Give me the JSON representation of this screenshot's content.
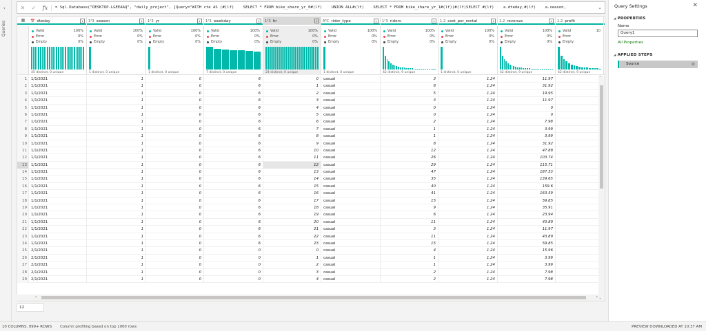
{
  "rail": {
    "label": "Queries",
    "chevron": "chevron-right-icon"
  },
  "formula": {
    "cancel_icon": "close-icon",
    "commit_icon": "check-icon",
    "fx": "fx",
    "text": "= Sql.Database(\"DESKTOP-LGEEAAQ\", \"daily_project\", [Query=\"WITH cte AS (#(lf)    SELECT * FROM bike_share_yr_0#(lf)    UNION ALL#(lf)    SELECT * FROM bike_share_yr_1#(lf))#(lf)SELECT #(lf)    a.dteday,#(lf)    a.season,"
  },
  "columns": [
    {
      "type": "📅",
      "name": "dteday"
    },
    {
      "type": "1²3",
      "name": "season"
    },
    {
      "type": "1²3",
      "name": "yr"
    },
    {
      "type": "1²3",
      "name": "weekday"
    },
    {
      "type": "1²3",
      "name": "hr"
    },
    {
      "type": "AᴮC",
      "name": "rider_type"
    },
    {
      "type": "1²3",
      "name": "riders"
    },
    {
      "type": "1.2",
      "name": "cost_per_rental"
    },
    {
      "type": "1.2",
      "name": "revenue"
    },
    {
      "type": "1.2",
      "name": "profit"
    }
  ],
  "profile_labels": {
    "valid": "Valid",
    "error": "Error",
    "empty": "Empty"
  },
  "profiles": [
    {
      "valid": "100%",
      "error": "0%",
      "empty": "0%",
      "distinct": "45 distinct, 0 unique"
    },
    {
      "valid": "100%",
      "error": "0%",
      "empty": "0%",
      "distinct": "1 distinct, 0 unique"
    },
    {
      "valid": "100%",
      "error": "0%",
      "empty": "0%",
      "distinct": "1 distinct, 0 unique"
    },
    {
      "valid": "100%",
      "error": "0%",
      "empty": "0%",
      "distinct": "7 distinct, 0 unique"
    },
    {
      "valid": "100%",
      "error": "0%",
      "empty": "0%",
      "distinct": "24 distinct, 0 unique"
    },
    {
      "valid": "100%",
      "error": "0%",
      "empty": "0%",
      "distinct": "1 distinct, 0 unique"
    },
    {
      "valid": "100%",
      "error": "0%",
      "empty": "0%",
      "distinct": "42 distinct, 9 unique"
    },
    {
      "valid": "100%",
      "error": "0%",
      "empty": "0%",
      "distinct": "1 distinct, 0 unique"
    },
    {
      "valid": "100%",
      "error": "0%",
      "empty": "0%",
      "distinct": "42 distinct, 9 unique"
    },
    {
      "valid": "10",
      "error": "",
      "empty": "",
      "distinct": "42 distinct, 9 unique"
    }
  ],
  "rows": [
    [
      "1",
      "1/1/2021",
      "1",
      "0",
      "6",
      "0",
      "casual",
      "3",
      "1.24",
      "11.97"
    ],
    [
      "2",
      "1/1/2021",
      "1",
      "0",
      "6",
      "1",
      "casual",
      "8",
      "1.24",
      "31.92"
    ],
    [
      "3",
      "1/1/2021",
      "1",
      "0",
      "6",
      "2",
      "casual",
      "5",
      "1.24",
      "19.95"
    ],
    [
      "4",
      "1/1/2021",
      "1",
      "0",
      "6",
      "3",
      "casual",
      "3",
      "1.24",
      "11.97"
    ],
    [
      "5",
      "1/1/2021",
      "1",
      "0",
      "6",
      "4",
      "casual",
      "0",
      "1.24",
      "0"
    ],
    [
      "6",
      "1/1/2021",
      "1",
      "0",
      "6",
      "5",
      "casual",
      "0",
      "1.24",
      "0"
    ],
    [
      "7",
      "1/1/2021",
      "1",
      "0",
      "6",
      "6",
      "casual",
      "2",
      "1.24",
      "7.98"
    ],
    [
      "8",
      "1/1/2021",
      "1",
      "0",
      "6",
      "7",
      "casual",
      "1",
      "1.24",
      "3.99"
    ],
    [
      "9",
      "1/1/2021",
      "1",
      "0",
      "6",
      "8",
      "casual",
      "1",
      "1.24",
      "3.99"
    ],
    [
      "10",
      "1/1/2021",
      "1",
      "0",
      "6",
      "9",
      "casual",
      "8",
      "1.24",
      "31.92"
    ],
    [
      "11",
      "1/1/2021",
      "1",
      "0",
      "6",
      "10",
      "casual",
      "12",
      "1.24",
      "47.88"
    ],
    [
      "12",
      "1/1/2021",
      "1",
      "0",
      "6",
      "11",
      "casual",
      "26",
      "1.24",
      "103.74"
    ],
    [
      "13",
      "1/1/2021",
      "1",
      "0",
      "6",
      "12",
      "casual",
      "29",
      "1.24",
      "115.71"
    ],
    [
      "14",
      "1/1/2021",
      "1",
      "0",
      "6",
      "13",
      "casual",
      "47",
      "1.24",
      "187.53"
    ],
    [
      "15",
      "1/1/2021",
      "1",
      "0",
      "6",
      "14",
      "casual",
      "35",
      "1.24",
      "139.65"
    ],
    [
      "16",
      "1/1/2021",
      "1",
      "0",
      "6",
      "15",
      "casual",
      "40",
      "1.24",
      "159.6"
    ],
    [
      "17",
      "1/1/2021",
      "1",
      "0",
      "6",
      "16",
      "casual",
      "41",
      "1.24",
      "163.59"
    ],
    [
      "18",
      "1/1/2021",
      "1",
      "0",
      "6",
      "17",
      "casual",
      "15",
      "1.24",
      "59.85"
    ],
    [
      "19",
      "1/1/2021",
      "1",
      "0",
      "6",
      "18",
      "casual",
      "9",
      "1.24",
      "35.91"
    ],
    [
      "20",
      "1/1/2021",
      "1",
      "0",
      "6",
      "19",
      "casual",
      "6",
      "1.24",
      "23.94"
    ],
    [
      "21",
      "1/1/2021",
      "1",
      "0",
      "6",
      "20",
      "casual",
      "11",
      "1.24",
      "43.89"
    ],
    [
      "22",
      "1/1/2021",
      "1",
      "0",
      "6",
      "21",
      "casual",
      "3",
      "1.24",
      "11.97"
    ],
    [
      "23",
      "1/1/2021",
      "1",
      "0",
      "6",
      "22",
      "casual",
      "11",
      "1.24",
      "43.89"
    ],
    [
      "24",
      "1/1/2021",
      "1",
      "0",
      "6",
      "23",
      "casual",
      "15",
      "1.24",
      "59.85"
    ],
    [
      "25",
      "2/1/2021",
      "1",
      "0",
      "0",
      "0",
      "casual",
      "4",
      "1.24",
      "15.96"
    ],
    [
      "26",
      "2/1/2021",
      "1",
      "0",
      "0",
      "1",
      "casual",
      "1",
      "1.24",
      "3.99"
    ],
    [
      "27",
      "2/1/2021",
      "1",
      "0",
      "0",
      "2",
      "casual",
      "1",
      "1.24",
      "3.99"
    ],
    [
      "28",
      "2/1/2021",
      "1",
      "0",
      "0",
      "3",
      "casual",
      "2",
      "1.24",
      "7.98"
    ],
    [
      "29",
      "2/1/2021",
      "1",
      "0",
      "0",
      "4",
      "casual",
      "2",
      "1.24",
      "7.98"
    ]
  ],
  "selected_row": "13",
  "row_count_box": "12",
  "pane": {
    "title": "Query Settings",
    "close_icon": "close-icon",
    "properties_heading": "PROPERTIES",
    "name_label": "Name",
    "name_value": "Query1",
    "all_properties": "All Properties",
    "steps_heading": "APPLIED STEPS",
    "step_source": "Source",
    "step_icon": "gear-icon"
  },
  "status": {
    "columns_rows": "10 COLUMNS, 999+ ROWS",
    "profiling": "Column profiling based on top 1000 rows",
    "preview": "PREVIEW DOWNLOADED AT 10:37 AM"
  },
  "colors": {
    "accent": "#00b3a1",
    "bar": "#01b8aa",
    "valid_dot": "#01b8aa",
    "error_dot": "#e8474b",
    "empty_dot": "#404040",
    "link": "#107c10"
  }
}
